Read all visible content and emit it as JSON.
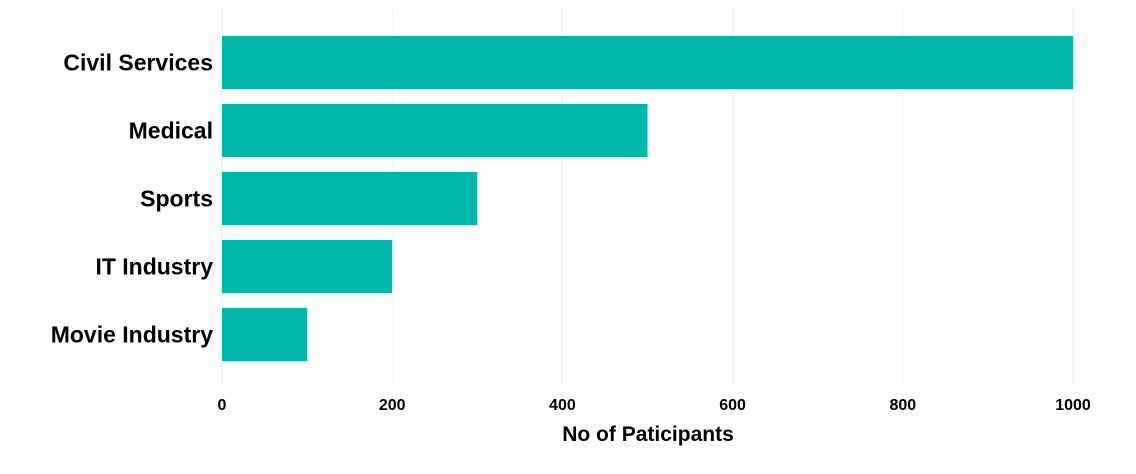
{
  "chart_data": {
    "type": "bar",
    "orientation": "horizontal",
    "categories": [
      "Civil Services",
      "Medical",
      "Sports",
      "IT Industry",
      "Movie Industry"
    ],
    "values": [
      1000,
      500,
      300,
      200,
      100
    ],
    "xlabel": "No of Paticipants",
    "ylabel": "",
    "xlim": [
      0,
      1000
    ],
    "xticks": [
      "0",
      "200",
      "400",
      "600",
      "800",
      "1000"
    ],
    "grid": true,
    "legend": "none",
    "bar_color": "#00b8a9"
  }
}
